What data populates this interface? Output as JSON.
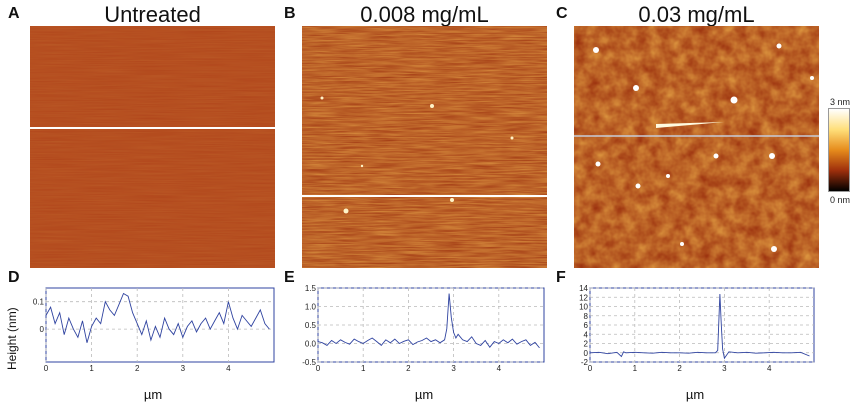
{
  "panels": {
    "A": {
      "letter": "A",
      "title": "Untreated"
    },
    "B": {
      "letter": "B",
      "title": "0.008 mg/mL"
    },
    "C": {
      "letter": "C",
      "title": "0.03 mg/mL"
    },
    "D": {
      "letter": "D"
    },
    "E": {
      "letter": "E"
    },
    "F": {
      "letter": "F"
    }
  },
  "colorbar": {
    "max_label": "3 nm",
    "min_label": "0 nm"
  },
  "colors": {
    "trace": "#2f43a0",
    "scan_line": "#ffffff",
    "afm_base": "#b0441a"
  },
  "chart_data": [
    {
      "type": "line",
      "panel": "D",
      "ylabel": "Height (nm)",
      "xlabel": "µm",
      "xlim": [
        0,
        5
      ],
      "ylim": [
        -0.12,
        0.15
      ],
      "xticks": [
        0,
        1,
        2,
        3,
        4
      ],
      "yticks": [
        0.1,
        0
      ],
      "grid": true,
      "series": [
        {
          "name": "profile",
          "x": [
            0,
            0.1,
            0.2,
            0.3,
            0.4,
            0.5,
            0.6,
            0.7,
            0.8,
            0.9,
            1.0,
            1.1,
            1.2,
            1.3,
            1.4,
            1.5,
            1.6,
            1.7,
            1.8,
            1.9,
            2.0,
            2.1,
            2.2,
            2.3,
            2.4,
            2.5,
            2.6,
            2.7,
            2.8,
            2.9,
            3.0,
            3.1,
            3.2,
            3.3,
            3.4,
            3.5,
            3.6,
            3.7,
            3.8,
            3.9,
            4.0,
            4.1,
            4.2,
            4.3,
            4.4,
            4.5,
            4.6,
            4.7,
            4.8,
            4.9
          ],
          "y": [
            0.05,
            0.08,
            0.02,
            0.06,
            -0.02,
            0.04,
            0.0,
            -0.03,
            0.03,
            -0.05,
            0.01,
            0.04,
            0.02,
            0.1,
            0.07,
            0.05,
            0.09,
            0.13,
            0.12,
            0.06,
            0.02,
            -0.02,
            0.03,
            -0.04,
            0.01,
            -0.03,
            0.04,
            0.0,
            -0.02,
            0.02,
            -0.03,
            0.01,
            0.03,
            -0.01,
            0.02,
            0.04,
            0.0,
            0.03,
            0.06,
            0.02,
            0.1,
            0.04,
            0.0,
            0.05,
            0.03,
            0.01,
            0.04,
            0.07,
            0.02,
            0.0
          ]
        }
      ]
    },
    {
      "type": "line",
      "panel": "E",
      "xlabel": "µm",
      "xlim": [
        0,
        5
      ],
      "ylim": [
        -0.5,
        1.5
      ],
      "xticks": [
        0,
        1,
        2,
        3,
        4
      ],
      "yticks": [
        1.5,
        1.0,
        0.5,
        0.0,
        -0.5
      ],
      "ytick_labels": [
        "1.5",
        "1.0",
        "0.5",
        "0.0",
        "-0.5"
      ],
      "grid": true,
      "series": [
        {
          "name": "profile",
          "x": [
            0,
            0.1,
            0.2,
            0.3,
            0.4,
            0.5,
            0.6,
            0.7,
            0.8,
            0.9,
            1.0,
            1.1,
            1.2,
            1.3,
            1.4,
            1.5,
            1.6,
            1.7,
            1.8,
            1.9,
            2.0,
            2.1,
            2.2,
            2.3,
            2.4,
            2.5,
            2.6,
            2.7,
            2.8,
            2.85,
            2.9,
            2.95,
            3.0,
            3.05,
            3.1,
            3.2,
            3.3,
            3.4,
            3.5,
            3.6,
            3.7,
            3.8,
            3.9,
            4.0,
            4.1,
            4.2,
            4.3,
            4.4,
            4.5,
            4.6,
            4.7,
            4.8,
            4.9
          ],
          "y": [
            0.05,
            0.02,
            -0.05,
            0.08,
            0.0,
            0.1,
            0.03,
            -0.02,
            0.12,
            0.05,
            0.0,
            0.08,
            0.15,
            0.05,
            -0.05,
            0.1,
            0.02,
            0.12,
            0.0,
            0.06,
            0.1,
            -0.03,
            0.04,
            0.08,
            0.15,
            0.05,
            0.1,
            0.02,
            0.1,
            0.4,
            1.35,
            0.7,
            0.3,
            0.15,
            0.25,
            0.1,
            0.05,
            0.18,
            0.0,
            -0.05,
            0.08,
            -0.1,
            0.05,
            0.0,
            0.1,
            0.02,
            0.12,
            -0.02,
            0.05,
            0.1,
            -0.05,
            0.03,
            -0.12
          ]
        }
      ]
    },
    {
      "type": "line",
      "panel": "F",
      "xlabel": "µm",
      "xlim": [
        0,
        5
      ],
      "ylim": [
        -2,
        14
      ],
      "xticks": [
        0,
        1,
        2,
        3,
        4
      ],
      "yticks": [
        14,
        12,
        10,
        8,
        6,
        4,
        2,
        0,
        -2
      ],
      "grid": true,
      "series": [
        {
          "name": "profile",
          "x": [
            0,
            0.2,
            0.4,
            0.6,
            0.7,
            0.75,
            0.8,
            1.0,
            1.2,
            1.4,
            1.6,
            1.8,
            2.0,
            2.2,
            2.4,
            2.6,
            2.8,
            2.85,
            2.9,
            2.93,
            2.96,
            3.0,
            3.1,
            3.3,
            3.5,
            3.7,
            3.9,
            4.1,
            4.3,
            4.5,
            4.7,
            4.9
          ],
          "y": [
            0.0,
            0.1,
            -0.2,
            0.1,
            -0.8,
            0.2,
            0.0,
            0.1,
            0.0,
            -0.1,
            0.1,
            0.0,
            0.0,
            -0.1,
            0.1,
            0.0,
            0.0,
            0.5,
            12.7,
            6.0,
            0.8,
            -1.2,
            0.2,
            0.0,
            0.1,
            -0.1,
            0.0,
            0.1,
            0.0,
            0.0,
            0.1,
            -0.7
          ]
        }
      ]
    }
  ]
}
